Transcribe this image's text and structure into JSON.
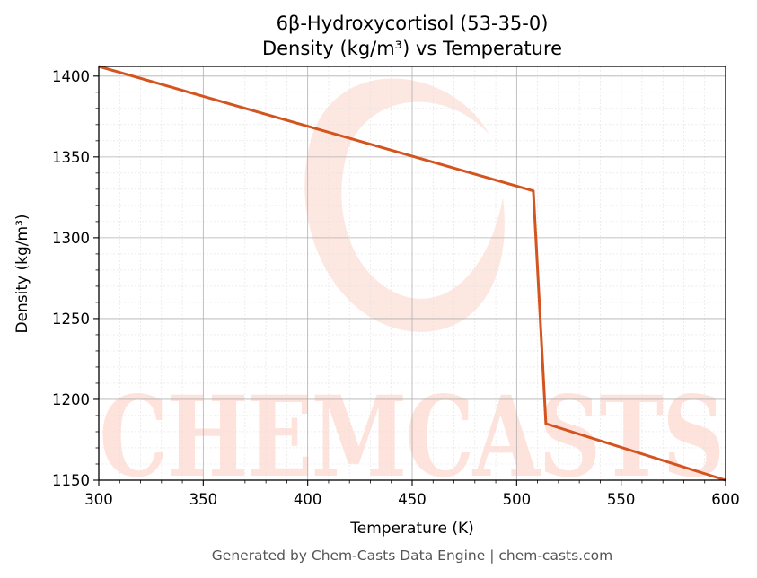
{
  "chart_data": {
    "type": "line",
    "title": "6β-Hydroxycortisol (53-35-0)",
    "subtitle": "Density (kg/m³) vs Temperature",
    "xlabel": "Temperature (K)",
    "ylabel": "Density (kg/m³)",
    "xlim": [
      300,
      600
    ],
    "ylim": [
      1150,
      1406
    ],
    "x_ticks": [
      300,
      350,
      400,
      450,
      500,
      550,
      600
    ],
    "y_ticks": [
      1150,
      1200,
      1250,
      1300,
      1350,
      1400
    ],
    "x_tick_labels": [
      "300",
      "350",
      "400",
      "450",
      "500",
      "550",
      "600"
    ],
    "y_tick_labels": [
      "1150",
      "1200",
      "1250",
      "1300",
      "1350",
      "1400"
    ],
    "grid": "major and minor",
    "series": [
      {
        "color": "#d4541f",
        "points": [
          {
            "x": 300,
            "y": 1406
          },
          {
            "x": 508,
            "y": 1329
          },
          {
            "x": 514,
            "y": 1185
          },
          {
            "x": 600,
            "y": 1150
          }
        ]
      }
    ]
  },
  "watermark": {
    "text": "CHEMCASTS",
    "color": "#fde3dc"
  },
  "footer": {
    "text": "Generated by Chem-Casts Data Engine | chem-casts.com"
  }
}
